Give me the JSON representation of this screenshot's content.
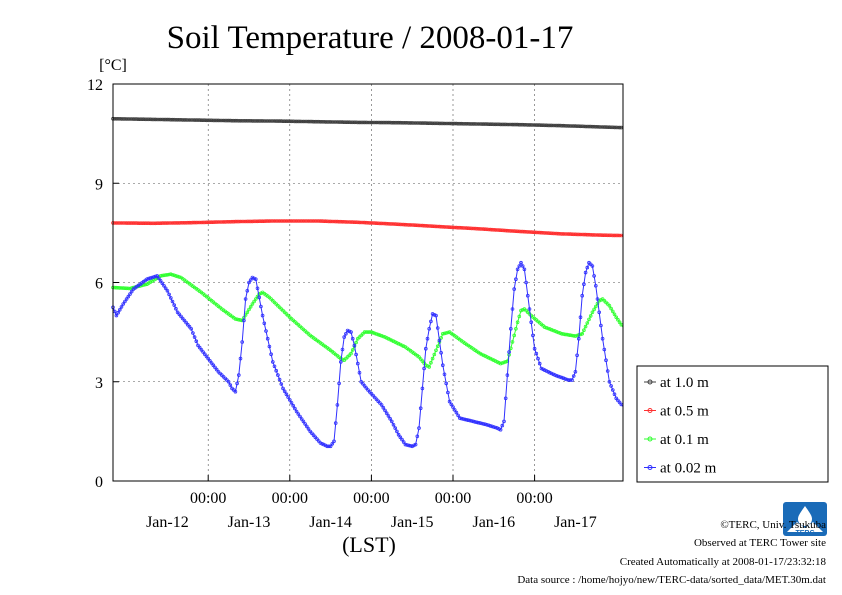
{
  "chart_data": {
    "type": "line",
    "title": "Soil Temperature / 2008-01-17",
    "ylabel": "[°C]",
    "xlabel": "(LST)",
    "ylim": [
      0,
      12
    ],
    "yticks": [
      0,
      3,
      6,
      9,
      12
    ],
    "x_time_ticks": [
      "00:00",
      "00:00",
      "00:00",
      "00:00",
      "00:00"
    ],
    "x_date_labels": [
      "Jan-12",
      "Jan-13",
      "Jan-14",
      "Jan-15",
      "Jan-16",
      "Jan-17"
    ],
    "grid": "dashed",
    "legend_position": "right-bottom",
    "series": [
      {
        "name": "at 1.0 m",
        "color": "#404040",
        "marker": "open-circle",
        "points": [
          [
            0,
            10.95
          ],
          [
            12,
            10.93
          ],
          [
            24,
            10.91
          ],
          [
            36,
            10.89
          ],
          [
            48,
            10.88
          ],
          [
            60,
            10.86
          ],
          [
            72,
            10.84
          ],
          [
            84,
            10.83
          ],
          [
            96,
            10.81
          ],
          [
            108,
            10.79
          ],
          [
            120,
            10.77
          ],
          [
            132,
            10.74
          ],
          [
            144,
            10.7
          ],
          [
            150,
            10.68
          ]
        ]
      },
      {
        "name": "at 0.5 m",
        "color": "#ff3030",
        "marker": "open-circle",
        "points": [
          [
            0,
            7.8
          ],
          [
            12,
            7.79
          ],
          [
            24,
            7.81
          ],
          [
            36,
            7.84
          ],
          [
            48,
            7.86
          ],
          [
            60,
            7.86
          ],
          [
            72,
            7.82
          ],
          [
            84,
            7.76
          ],
          [
            96,
            7.69
          ],
          [
            108,
            7.62
          ],
          [
            120,
            7.54
          ],
          [
            132,
            7.47
          ],
          [
            144,
            7.43
          ],
          [
            150,
            7.42
          ]
        ]
      },
      {
        "name": "at 0.1 m",
        "color": "#30ff30",
        "marker": "open-circle",
        "points": [
          [
            0,
            5.85
          ],
          [
            5,
            5.82
          ],
          [
            10,
            5.95
          ],
          [
            14,
            6.2
          ],
          [
            17,
            6.25
          ],
          [
            20,
            6.15
          ],
          [
            26,
            5.7
          ],
          [
            32,
            5.2
          ],
          [
            36,
            4.9
          ],
          [
            38,
            4.85
          ],
          [
            41,
            5.35
          ],
          [
            43,
            5.65
          ],
          [
            44,
            5.7
          ],
          [
            46,
            5.55
          ],
          [
            52,
            4.95
          ],
          [
            58,
            4.4
          ],
          [
            64,
            3.95
          ],
          [
            67,
            3.7
          ],
          [
            68,
            3.65
          ],
          [
            70,
            3.85
          ],
          [
            72,
            4.3
          ],
          [
            74,
            4.5
          ],
          [
            76,
            4.5
          ],
          [
            80,
            4.35
          ],
          [
            86,
            4.05
          ],
          [
            90,
            3.75
          ],
          [
            92,
            3.5
          ],
          [
            93,
            3.45
          ],
          [
            95,
            3.95
          ],
          [
            97,
            4.45
          ],
          [
            99,
            4.5
          ],
          [
            103,
            4.2
          ],
          [
            108,
            3.85
          ],
          [
            112,
            3.65
          ],
          [
            114,
            3.55
          ],
          [
            116,
            3.62
          ],
          [
            118,
            4.4
          ],
          [
            119,
            4.8
          ],
          [
            120,
            5.15
          ],
          [
            121,
            5.2
          ],
          [
            123,
            5.0
          ],
          [
            127,
            4.65
          ],
          [
            132,
            4.45
          ],
          [
            136,
            4.38
          ],
          [
            138,
            4.45
          ],
          [
            141,
            5.1
          ],
          [
            143,
            5.45
          ],
          [
            144,
            5.5
          ],
          [
            146,
            5.3
          ],
          [
            148,
            4.95
          ],
          [
            150,
            4.65
          ]
        ]
      },
      {
        "name": "at 0.02 m",
        "color": "#3030ff",
        "marker": "open-circle",
        "points": [
          [
            0,
            5.25
          ],
          [
            1,
            5.0
          ],
          [
            3,
            5.35
          ],
          [
            6,
            5.8
          ],
          [
            10,
            6.1
          ],
          [
            13,
            6.2
          ],
          [
            16,
            5.75
          ],
          [
            19,
            5.1
          ],
          [
            23,
            4.6
          ],
          [
            25,
            4.1
          ],
          [
            28,
            3.7
          ],
          [
            31,
            3.3
          ],
          [
            34,
            3.0
          ],
          [
            35,
            2.8
          ],
          [
            36,
            2.7
          ],
          [
            37,
            3.2
          ],
          [
            38,
            4.2
          ],
          [
            39,
            5.5
          ],
          [
            40,
            6.0
          ],
          [
            41,
            6.15
          ],
          [
            42,
            6.1
          ],
          [
            44,
            5.0
          ],
          [
            47,
            3.6
          ],
          [
            50,
            2.8
          ],
          [
            54,
            2.1
          ],
          [
            58,
            1.5
          ],
          [
            61,
            1.15
          ],
          [
            63,
            1.05
          ],
          [
            64,
            1.05
          ],
          [
            65,
            1.2
          ],
          [
            66,
            2.3
          ],
          [
            67,
            3.6
          ],
          [
            68,
            4.35
          ],
          [
            69,
            4.55
          ],
          [
            70,
            4.5
          ],
          [
            71,
            4.1
          ],
          [
            73,
            3.0
          ],
          [
            75,
            2.75
          ],
          [
            79,
            2.3
          ],
          [
            82,
            1.8
          ],
          [
            84,
            1.4
          ],
          [
            86,
            1.1
          ],
          [
            88,
            1.05
          ],
          [
            89,
            1.1
          ],
          [
            90,
            1.6
          ],
          [
            91,
            2.8
          ],
          [
            92,
            4.0
          ],
          [
            93,
            4.6
          ],
          [
            94,
            5.05
          ],
          [
            95,
            5.0
          ],
          [
            97,
            3.5
          ],
          [
            99,
            2.4
          ],
          [
            102,
            1.9
          ],
          [
            106,
            1.8
          ],
          [
            110,
            1.7
          ],
          [
            113,
            1.6
          ],
          [
            114,
            1.55
          ],
          [
            115,
            1.8
          ],
          [
            116,
            3.2
          ],
          [
            117,
            4.6
          ],
          [
            118,
            5.8
          ],
          [
            119,
            6.4
          ],
          [
            120,
            6.6
          ],
          [
            121,
            6.4
          ],
          [
            122,
            5.6
          ],
          [
            124,
            4.0
          ],
          [
            126,
            3.4
          ],
          [
            130,
            3.2
          ],
          [
            134,
            3.05
          ],
          [
            135,
            3.05
          ],
          [
            136,
            3.3
          ],
          [
            137,
            4.3
          ],
          [
            138,
            5.6
          ],
          [
            139,
            6.3
          ],
          [
            140,
            6.6
          ],
          [
            141,
            6.5
          ],
          [
            142,
            5.9
          ],
          [
            144,
            4.3
          ],
          [
            146,
            3.0
          ],
          [
            148,
            2.5
          ],
          [
            150,
            2.25
          ]
        ]
      }
    ]
  },
  "footer": {
    "copyright": "©TERC, Univ. Tsukuba",
    "observed": "Observed at TERC Tower site",
    "created": "Created Automatically at 2008-01-17/23:32:18",
    "source": "Data source : /home/hojyo/new/TERC-data/sorted_data/MET.30m.dat"
  },
  "logo": {
    "text": "TERC",
    "color": "#1a6bb8"
  }
}
